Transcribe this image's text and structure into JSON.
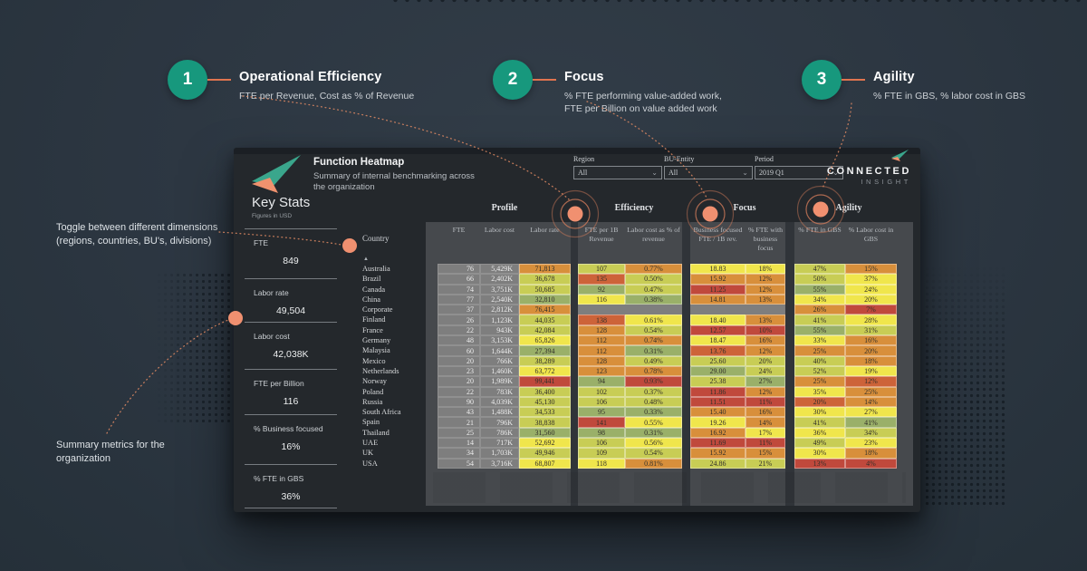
{
  "annotations": {
    "steps": [
      {
        "number": "1",
        "title": "Operational Efficiency",
        "desc": "FTE per Revenue, Cost as % of Revenue"
      },
      {
        "number": "2",
        "title": "Focus",
        "desc": "% FTE performing value-added work,\nFTE per Billion on value added work"
      },
      {
        "number": "3",
        "title": "Agility",
        "desc": "% FTE in GBS, % labor cost in GBS"
      }
    ],
    "left_notes": [
      {
        "text": "Toggle between different dimensions\n(regions, countries, BU's, divisions)"
      },
      {
        "text": "Summary  metrics for the\norganization"
      }
    ]
  },
  "dashboard": {
    "title": "Function Heatmap",
    "subtitle": "Summary of internal benchmarking across the organization",
    "brand": {
      "line1": "CONNECTED",
      "line2": "INSIGHT"
    },
    "filters": [
      {
        "label": "Region",
        "value": "All"
      },
      {
        "label": "BU-Entity",
        "value": "All"
      },
      {
        "label": "Period",
        "value": "2019 Q1"
      }
    ],
    "key_stats": {
      "heading": "Key Stats",
      "subheading": "Figures in USD",
      "items": [
        {
          "label": "FTE",
          "value": "849"
        },
        {
          "label": "Labor rate",
          "value": "49,504"
        },
        {
          "label": "Labor cost",
          "value": "42,038K"
        },
        {
          "label": "FTE per Billion",
          "value": "116"
        },
        {
          "label": "% Business focused",
          "value": "16%"
        },
        {
          "label": "% FTE in GBS",
          "value": "36%"
        }
      ]
    },
    "table": {
      "country_header": "Country",
      "sort_icon": "▲",
      "groups": [
        "Profile",
        "Efficiency",
        "Focus",
        "Agility"
      ],
      "columns": [
        "FTE",
        "Labor cost",
        "Labor rate",
        "FTE per 1B Revenue",
        "Labor cost as % of revenue",
        "Business focused FTE / 1B rev.",
        "% FTE with business focus",
        "% FTE in GBS",
        "% Labor cost in GBS"
      ],
      "rows": [
        {
          "country": "Australia",
          "values": [
            "76",
            "5,429K",
            "71,813",
            "107",
            "0.77%",
            "18.83",
            "18%",
            "47%",
            "15%"
          ],
          "colors": [
            "O",
            "YG",
            "O",
            "Y",
            "Y",
            "YG",
            "O"
          ]
        },
        {
          "country": "Brazil",
          "values": [
            "66",
            "2,402K",
            "36,678",
            "135",
            "0.50%",
            "15.92",
            "12%",
            "50%",
            "37%"
          ],
          "colors": [
            "YG",
            "OR",
            "YG",
            "O",
            "O",
            "YG",
            "Y"
          ]
        },
        {
          "country": "Canada",
          "values": [
            "74",
            "3,751K",
            "50,685",
            "92",
            "0.47%",
            "11.25",
            "12%",
            "55%",
            "24%"
          ],
          "colors": [
            "YG",
            "G",
            "YG",
            "R",
            "O",
            "G",
            "Y"
          ]
        },
        {
          "country": "China",
          "values": [
            "77",
            "2,540K",
            "32,810",
            "116",
            "0.38%",
            "14.81",
            "13%",
            "34%",
            "20%"
          ],
          "colors": [
            "G",
            "Y",
            "G",
            "O",
            "O",
            "Y",
            "Y"
          ]
        },
        {
          "country": "Corporate",
          "values": [
            "37",
            "2,812K",
            "76,415",
            "",
            "",
            "",
            "",
            "26%",
            "7%"
          ],
          "colors": [
            "O",
            "X",
            "X",
            "X",
            "X",
            "O",
            "R"
          ]
        },
        {
          "country": "Finland",
          "values": [
            "26",
            "1,123K",
            "44,035",
            "138",
            "0.61%",
            "18.40",
            "13%",
            "41%",
            "28%"
          ],
          "colors": [
            "YG",
            "OR",
            "Y",
            "Y",
            "O",
            "YG",
            "Y"
          ]
        },
        {
          "country": "France",
          "values": [
            "22",
            "943K",
            "42,084",
            "128",
            "0.54%",
            "12.57",
            "10%",
            "55%",
            "31%"
          ],
          "colors": [
            "YG",
            "O",
            "YG",
            "R",
            "R",
            "G",
            "YG"
          ]
        },
        {
          "country": "Germany",
          "values": [
            "48",
            "3,153K",
            "65,826",
            "112",
            "0.74%",
            "18.47",
            "16%",
            "33%",
            "16%"
          ],
          "colors": [
            "Y",
            "O",
            "O",
            "Y",
            "O",
            "Y",
            "O"
          ]
        },
        {
          "country": "Malaysia",
          "values": [
            "60",
            "1,644K",
            "27,394",
            "112",
            "0.31%",
            "13.76",
            "12%",
            "25%",
            "20%"
          ],
          "colors": [
            "G",
            "O",
            "G",
            "OR",
            "O",
            "O",
            "O"
          ]
        },
        {
          "country": "Mexico",
          "values": [
            "20",
            "766K",
            "38,289",
            "128",
            "0.49%",
            "25.60",
            "20%",
            "40%",
            "18%"
          ],
          "colors": [
            "YG",
            "O",
            "YG",
            "YG",
            "YG",
            "YG",
            "O"
          ]
        },
        {
          "country": "Netherlands",
          "values": [
            "23",
            "1,460K",
            "63,772",
            "123",
            "0.78%",
            "29.00",
            "24%",
            "52%",
            "19%"
          ],
          "colors": [
            "Y",
            "O",
            "O",
            "G",
            "YG",
            "YG",
            "Y"
          ]
        },
        {
          "country": "Norway",
          "values": [
            "20",
            "1,989K",
            "99,441",
            "94",
            "0.93%",
            "25.38",
            "27%",
            "25%",
            "12%"
          ],
          "colors": [
            "R",
            "G",
            "R",
            "YG",
            "G",
            "O",
            "OR"
          ]
        },
        {
          "country": "Poland",
          "values": [
            "22",
            "783K",
            "36,400",
            "102",
            "0.37%",
            "11.86",
            "12%",
            "35%",
            "25%"
          ],
          "colors": [
            "YG",
            "YG",
            "YG",
            "R",
            "O",
            "Y",
            "O"
          ]
        },
        {
          "country": "Russia",
          "values": [
            "90",
            "4,039K",
            "45,130",
            "106",
            "0.48%",
            "11.51",
            "11%",
            "20%",
            "14%"
          ],
          "colors": [
            "YG",
            "YG",
            "YG",
            "R",
            "R",
            "OR",
            "O"
          ]
        },
        {
          "country": "South Africa",
          "values": [
            "43",
            "1,488K",
            "34,533",
            "95",
            "0.33%",
            "15.40",
            "16%",
            "30%",
            "27%"
          ],
          "colors": [
            "YG",
            "G",
            "G",
            "O",
            "O",
            "Y",
            "Y"
          ]
        },
        {
          "country": "Spain",
          "values": [
            "21",
            "796K",
            "38,838",
            "141",
            "0.55%",
            "19.26",
            "14%",
            "41%",
            "41%"
          ],
          "colors": [
            "YG",
            "R",
            "Y",
            "Y",
            "O",
            "YG",
            "G"
          ]
        },
        {
          "country": "Thailand",
          "values": [
            "25",
            "786K",
            "31,560",
            "98",
            "0.31%",
            "16.92",
            "17%",
            "36%",
            "34%"
          ],
          "colors": [
            "G",
            "G",
            "G",
            "O",
            "Y",
            "Y",
            "YG"
          ]
        },
        {
          "country": "UAE",
          "values": [
            "14",
            "717K",
            "52,692",
            "106",
            "0.56%",
            "11.69",
            "11%",
            "49%",
            "23%"
          ],
          "colors": [
            "Y",
            "YG",
            "Y",
            "R",
            "R",
            "YG",
            "Y"
          ]
        },
        {
          "country": "UK",
          "values": [
            "34",
            "1,703K",
            "49,946",
            "109",
            "0.54%",
            "15.92",
            "15%",
            "30%",
            "18%"
          ],
          "colors": [
            "YG",
            "YG",
            "YG",
            "O",
            "O",
            "Y",
            "O"
          ]
        },
        {
          "country": "USA",
          "values": [
            "54",
            "3,716K",
            "68,807",
            "118",
            "0.81%",
            "24.86",
            "21%",
            "13%",
            "4%"
          ],
          "colors": [
            "Y",
            "Y",
            "O",
            "YG",
            "YG",
            "R",
            "R"
          ]
        }
      ]
    }
  },
  "palette": {
    "R": "#c0493c",
    "OR": "#cd6339",
    "O": "#d88f3b",
    "Y": "#f0e64c",
    "YG": "#c8cd55",
    "G": "#9ab069",
    "X": "#7e7e7e",
    "accent_orange": "#f09070",
    "accent_teal": "#17987d",
    "page_bg": "#2d3741",
    "panel_bg": "#24282c",
    "table_backdrop": "#46494d"
  }
}
